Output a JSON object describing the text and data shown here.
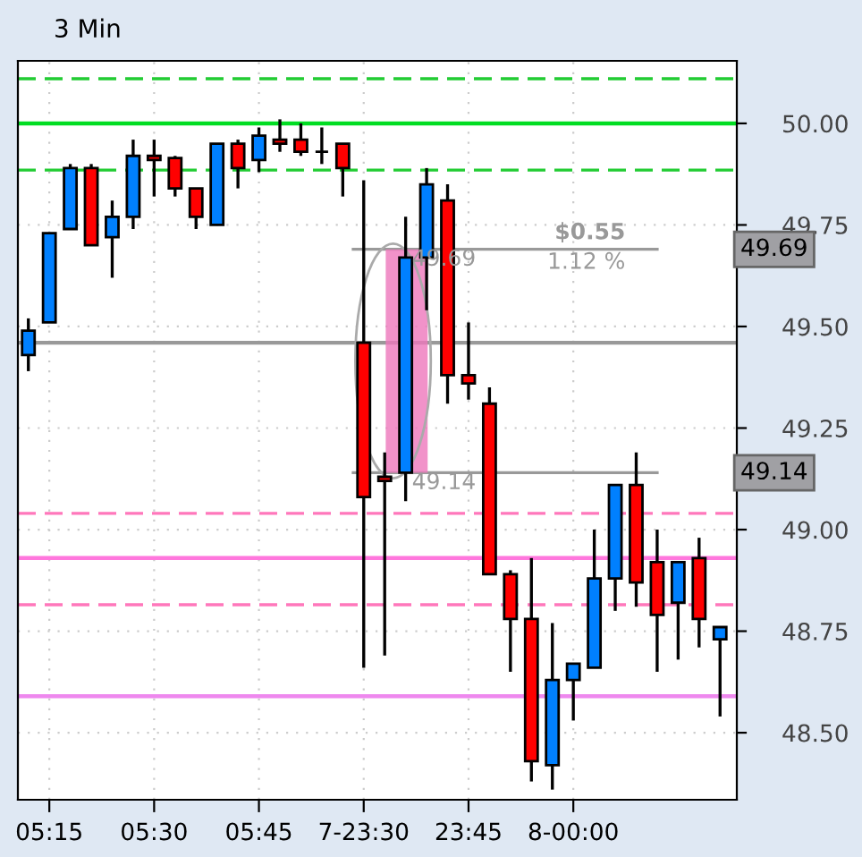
{
  "chart_data": {
    "type": "candlestick",
    "title": "3 Min",
    "categories": [
      null,
      "05:15",
      null,
      null,
      null,
      null,
      "05:30",
      null,
      null,
      null,
      null,
      "05:45",
      null,
      null,
      null,
      null,
      "7-23:30",
      null,
      null,
      null,
      null,
      "23:45",
      null,
      null,
      null,
      null,
      "8-00:00",
      null,
      null,
      null,
      null,
      null,
      null,
      null
    ],
    "ohlc": [
      [
        49.43,
        49.52,
        49.39,
        49.49
      ],
      [
        49.51,
        49.73,
        49.51,
        49.73
      ],
      [
        49.74,
        49.9,
        49.74,
        49.89
      ],
      [
        49.89,
        49.9,
        49.7,
        49.7
      ],
      [
        49.72,
        49.81,
        49.62,
        49.77
      ],
      [
        49.77,
        49.96,
        49.74,
        49.92
      ],
      [
        49.92,
        49.96,
        49.82,
        49.91
      ],
      [
        49.915,
        49.92,
        49.82,
        49.84
      ],
      [
        49.84,
        49.84,
        49.74,
        49.77
      ],
      [
        49.75,
        49.95,
        49.75,
        49.95
      ],
      [
        49.95,
        49.96,
        49.84,
        49.89
      ],
      [
        49.91,
        49.99,
        49.88,
        49.97
      ],
      [
        49.96,
        50.01,
        49.93,
        49.95
      ],
      [
        49.96,
        50.0,
        49.92,
        49.93
      ],
      [
        49.93,
        49.99,
        49.9,
        49.93
      ],
      [
        49.95,
        49.95,
        49.82,
        49.89
      ],
      [
        49.46,
        49.86,
        48.66,
        49.08
      ],
      [
        49.13,
        49.19,
        48.69,
        49.12
      ],
      [
        49.14,
        49.77,
        49.07,
        49.67
      ],
      [
        49.67,
        49.89,
        49.54,
        49.85
      ],
      [
        49.81,
        49.85,
        49.31,
        49.38
      ],
      [
        49.38,
        49.51,
        49.32,
        49.36
      ],
      [
        49.31,
        49.35,
        48.89,
        48.89
      ],
      [
        48.89,
        48.9,
        48.65,
        48.78
      ],
      [
        48.78,
        48.93,
        48.38,
        48.43
      ],
      [
        48.42,
        48.77,
        48.36,
        48.63
      ],
      [
        48.63,
        48.67,
        48.53,
        48.67
      ],
      [
        48.66,
        49.0,
        48.66,
        48.88
      ],
      [
        48.88,
        49.11,
        48.8,
        49.11
      ],
      [
        49.11,
        49.19,
        48.81,
        48.87
      ],
      [
        48.92,
        49.0,
        48.65,
        48.79
      ],
      [
        48.82,
        48.92,
        48.68,
        48.92
      ],
      [
        48.93,
        48.98,
        48.71,
        48.78
      ],
      [
        48.73,
        48.76,
        48.54,
        48.76
      ]
    ],
    "colors": [
      "#0080ff",
      "#0080ff",
      "#0080ff",
      "#ff0000",
      "#0080ff",
      "#0080ff",
      "#ff0000",
      "#ff0000",
      "#ff0000",
      "#0080ff",
      "#ff0000",
      "#0080ff",
      "#ff0000",
      "#ff0000",
      "#000000",
      "#ff0000",
      "#ff0000",
      "#ff0000",
      "#0080ff",
      "#0080ff",
      "#ff0000",
      "#ff0000",
      "#ff0000",
      "#ff0000",
      "#ff0000",
      "#0080ff",
      "#0080ff",
      "#0080ff",
      "#0080ff",
      "#ff0000",
      "#ff0000",
      "#0080ff",
      "#ff0000",
      "#0080ff"
    ],
    "ylim": [
      48.335,
      50.154
    ],
    "yticks": [
      {
        "value": 48.5,
        "label": "48.50"
      },
      {
        "value": 48.75,
        "label": "48.75"
      },
      {
        "value": 49.0,
        "label": "49.00"
      },
      {
        "value": 49.25,
        "label": "49.25"
      },
      {
        "value": 49.5,
        "label": "49.50"
      },
      {
        "value": 49.75,
        "label": "49.75"
      },
      {
        "value": 50.0,
        "label": "50.00"
      }
    ],
    "ref_lines": [
      {
        "axis": "y",
        "value": 50.11,
        "color": "#22cc33",
        "line_style": "dashed"
      },
      {
        "axis": "y",
        "value": 50.0,
        "color": "#00dd22",
        "line_style": "solid"
      },
      {
        "axis": "y",
        "value": 49.885,
        "color": "#22cc33",
        "line_style": "dashed"
      },
      {
        "axis": "y",
        "value": 49.46,
        "color": "#999999",
        "line_style": "solid"
      },
      {
        "axis": "y",
        "value": 49.69,
        "color": "#999999",
        "line_style": "solid",
        "label": "49.69"
      },
      {
        "axis": "y",
        "value": 49.14,
        "color": "#999999",
        "line_style": "solid",
        "label": "49.14"
      },
      {
        "axis": "y",
        "value": 49.04,
        "color": "#ff77bb",
        "line_style": "dashed"
      },
      {
        "axis": "y",
        "value": 48.93,
        "color": "#ff77dd",
        "line_style": "solid"
      },
      {
        "axis": "y",
        "value": 48.815,
        "color": "#ff77bb",
        "line_style": "dashed"
      },
      {
        "axis": "y",
        "value": 48.59,
        "color": "#ee88ee",
        "line_style": "solid"
      }
    ],
    "annotations": [
      "$0.55",
      "1.12 %"
    ],
    "grid": true
  }
}
